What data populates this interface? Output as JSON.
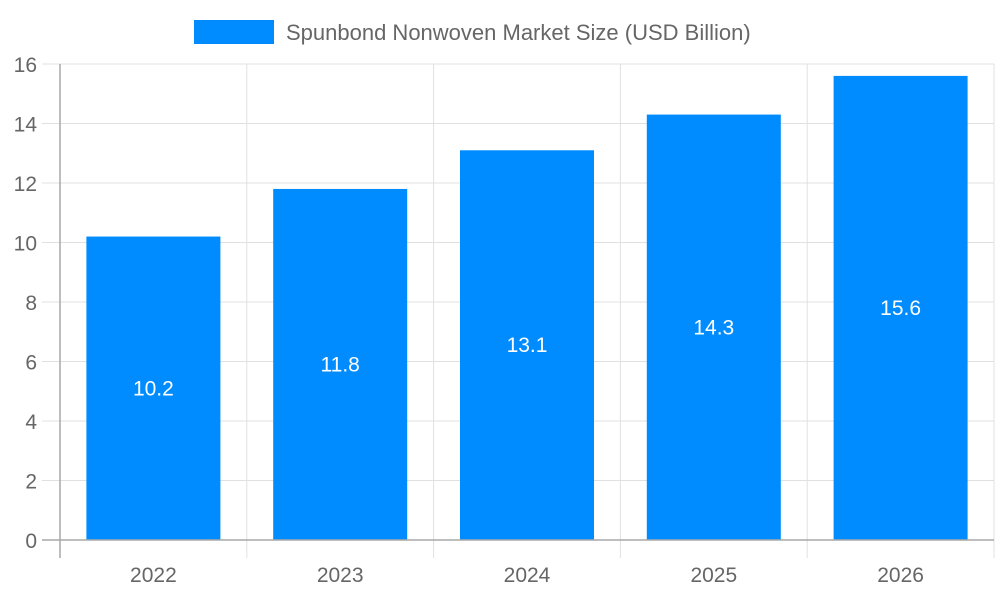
{
  "chart_data": {
    "type": "bar",
    "title": "",
    "legend": [
      {
        "label": "Spunbond Nonwoven Market Size (USD Billion)",
        "color": "#008cff"
      }
    ],
    "legend_position": "top",
    "categories": [
      "2022",
      "2023",
      "2024",
      "2025",
      "2026"
    ],
    "series": [
      {
        "name": "Spunbond Nonwoven Market Size (USD Billion)",
        "values": [
          10.2,
          11.8,
          13.1,
          14.3,
          15.6
        ],
        "color": "#008cff"
      }
    ],
    "data_labels": [
      "10.2",
      "11.8",
      "13.1",
      "14.3",
      "15.6"
    ],
    "xlabel": "",
    "ylabel": "",
    "ylim": [
      0,
      16
    ],
    "yticks": [
      "0",
      "2",
      "4",
      "6",
      "8",
      "10",
      "12",
      "14",
      "16"
    ],
    "grid": true
  },
  "colors": {
    "bar": "#008cff",
    "grid": "#e0e0e0",
    "axis": "#a8a8a8",
    "tick_text": "#666666",
    "label_text": "#ffffff"
  }
}
